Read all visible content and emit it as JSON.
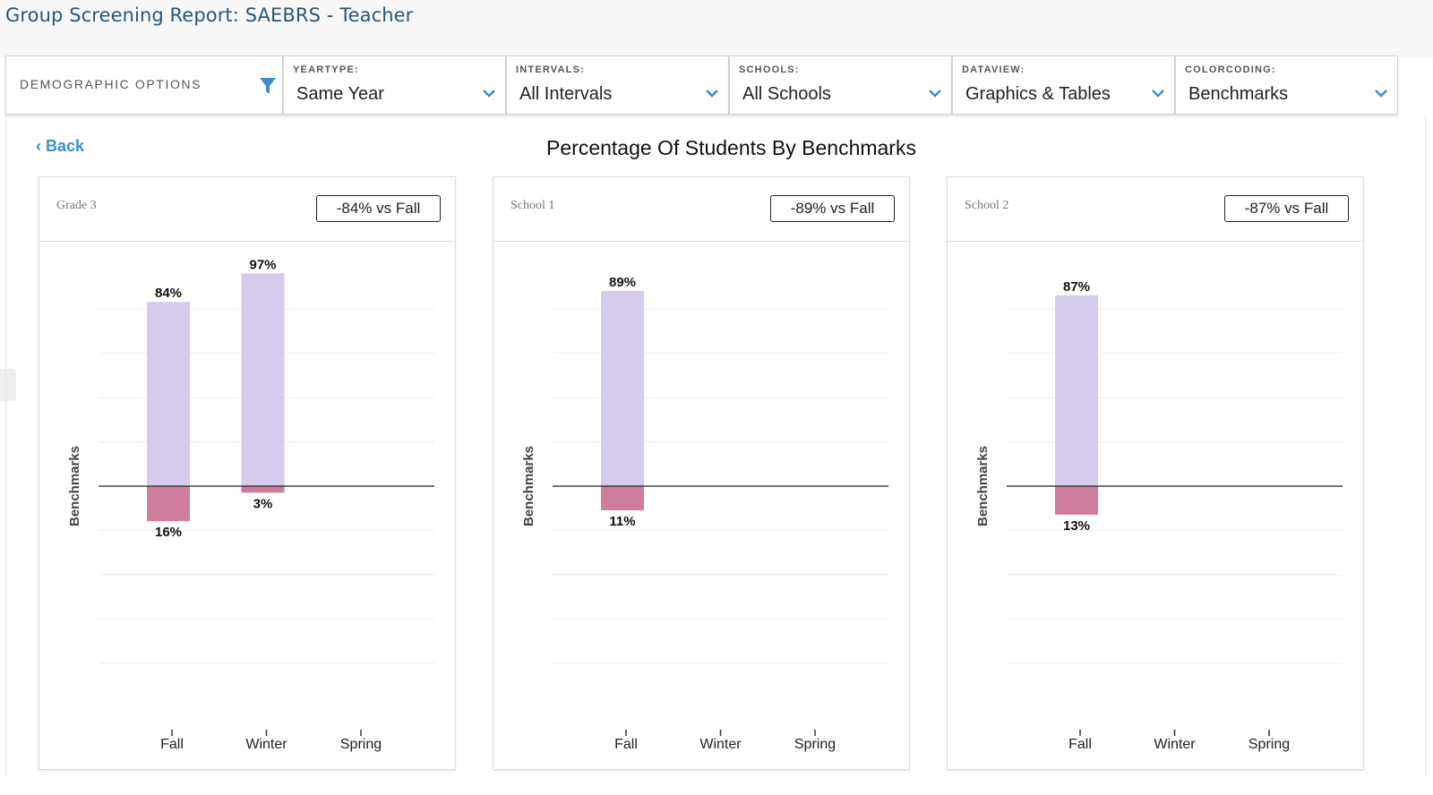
{
  "header": {
    "title": "Group Screening Report: SAEBRS - Teacher"
  },
  "filters": {
    "demographic": {
      "label": "DEMOGRAPHIC OPTIONS",
      "icon": "filter-icon"
    },
    "dropdowns": [
      {
        "label": "YEARTYPE:",
        "value": "Same Year"
      },
      {
        "label": "INTERVALS:",
        "value": "All Intervals"
      },
      {
        "label": "SCHOOLS:",
        "value": "All Schools"
      },
      {
        "label": "DATAVIEW:",
        "value": "Graphics & Tables"
      },
      {
        "label": "COLORCODING:",
        "value": "Benchmarks"
      }
    ]
  },
  "nav": {
    "back_label": "Back"
  },
  "colors": {
    "accent": "#3a8ec8",
    "above": "#d5cbed",
    "below": "#cf7d9c",
    "title": "#2b5674"
  },
  "chart_data": [
    {
      "type": "bar",
      "title": "Percentage Of Students By Benchmarks",
      "panel_title": "Grade 3",
      "badge": "-84% vs Fall",
      "ylabel": "Benchmarks",
      "categories": [
        "Fall",
        "Winter",
        "Spring"
      ],
      "series": [
        {
          "values": [
            84,
            97,
            null
          ],
          "labels": [
            "84%",
            "97%",
            ""
          ]
        },
        {
          "values": [
            16,
            3,
            null
          ],
          "labels": [
            "16%",
            "3%",
            ""
          ]
        }
      ],
      "ylim": [
        -100,
        100
      ],
      "grid": true
    },
    {
      "type": "bar",
      "panel_title": "School 1",
      "badge": "-89% vs Fall",
      "ylabel": "Benchmarks",
      "categories": [
        "Fall",
        "Winter",
        "Spring"
      ],
      "series": [
        {
          "values": [
            89,
            null,
            null
          ],
          "labels": [
            "89%",
            "",
            ""
          ]
        },
        {
          "values": [
            11,
            null,
            null
          ],
          "labels": [
            "11%",
            "",
            ""
          ]
        }
      ],
      "ylim": [
        -100,
        100
      ],
      "grid": true
    },
    {
      "type": "bar",
      "panel_title": "School 2",
      "badge": "-87% vs Fall",
      "ylabel": "Benchmarks",
      "categories": [
        "Fall",
        "Winter",
        "Spring"
      ],
      "series": [
        {
          "values": [
            87,
            null,
            null
          ],
          "labels": [
            "87%",
            "",
            ""
          ]
        },
        {
          "values": [
            13,
            null,
            null
          ],
          "labels": [
            "13%",
            "",
            ""
          ]
        }
      ],
      "ylim": [
        -100,
        100
      ],
      "grid": true
    }
  ]
}
